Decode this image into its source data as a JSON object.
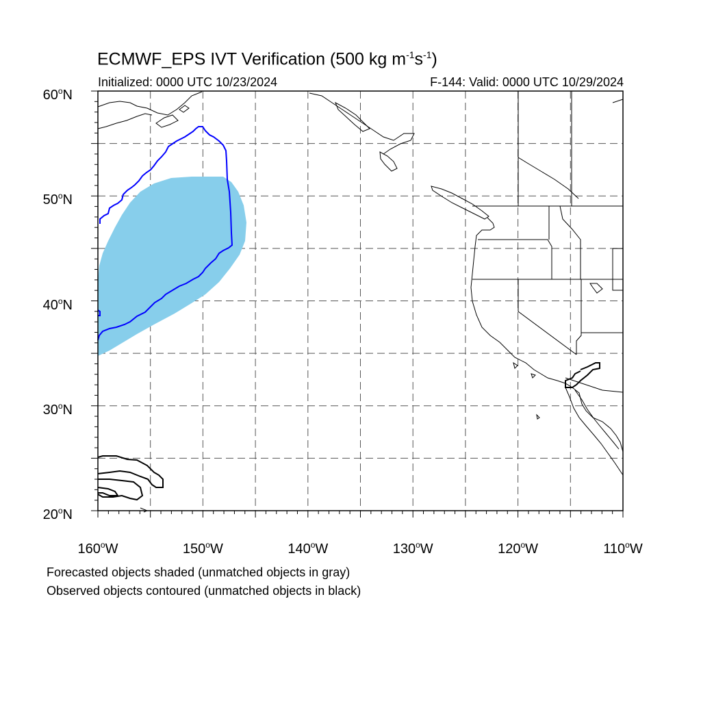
{
  "title": {
    "main_prefix": "ECMWF_EPS IVT Verification (500 kg m",
    "exp1": "-1",
    "middle": "s",
    "exp2": "-1",
    "suffix": ")"
  },
  "subtitle_left": "Initialized: 0000 UTC 10/23/2024",
  "subtitle_right": "F-144: Valid: 0000 UTC 10/29/2024",
  "map": {
    "extent": {
      "lon_min": -160,
      "lon_max": -110,
      "lat_min": 20,
      "lat_max": 60
    },
    "lat_labels": [
      {
        "value": "60",
        "suffix": "N",
        "lat": 60
      },
      {
        "value": "50",
        "suffix": "N",
        "lat": 50
      },
      {
        "value": "40",
        "suffix": "N",
        "lat": 40
      },
      {
        "value": "30",
        "suffix": "N",
        "lat": 30
      },
      {
        "value": "20",
        "suffix": "N",
        "lat": 20
      }
    ],
    "lon_labels": [
      {
        "value": "160",
        "suffix": "W",
        "lon": -160
      },
      {
        "value": "150",
        "suffix": "W",
        "lon": -150
      },
      {
        "value": "140",
        "suffix": "W",
        "lon": -140
      },
      {
        "value": "130",
        "suffix": "W",
        "lon": -130
      },
      {
        "value": "120",
        "suffix": "W",
        "lon": -120
      },
      {
        "value": "110",
        "suffix": "W",
        "lon": -110
      }
    ],
    "degree_symbol": "o",
    "grid_spacing_deg": 5,
    "grid_style": "dashed",
    "colors": {
      "forecast_matched_fill": "#87ceeb",
      "observed_matched_contour": "#0000ff",
      "observed_unmatched_contour": "#000000",
      "coastline": "#000000",
      "grid": "#555555"
    }
  },
  "notes": [
    "Forecasted objects shaded (unmatched objects in gray)",
    "Observed objects contoured (unmatched objects in black)"
  ]
}
